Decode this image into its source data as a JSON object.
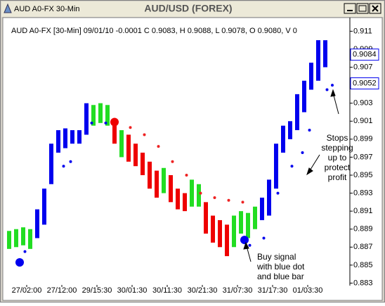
{
  "window": {
    "caption": "AUD A0-FX 30-Min",
    "title": "AUD/USD (FOREX)"
  },
  "chart_data": {
    "type": "ohlc",
    "header": "AUD A0-FX [30-Min] 09/01/10  -0.0001 C 0.9083, H 0.9088, L 0.9078, O 0.9080, V 0",
    "ylim": [
      0.8828,
      0.9115
    ],
    "yticks": [
      0.883,
      0.885,
      0.887,
      0.889,
      0.891,
      0.893,
      0.895,
      0.897,
      0.899,
      0.901,
      0.903,
      0.905,
      0.907,
      0.909,
      0.911
    ],
    "xlim": [
      -2,
      194
    ],
    "xticks": [
      {
        "value": 10,
        "label": "27/02:00"
      },
      {
        "value": 30,
        "label": "27/12:00"
      },
      {
        "value": 50,
        "label": "29/15:30"
      },
      {
        "value": 70,
        "label": "30/01:30"
      },
      {
        "value": 90,
        "label": "30/11:30"
      },
      {
        "value": 110,
        "label": "30/21:30"
      },
      {
        "value": 130,
        "label": "31/07:30"
      },
      {
        "value": 150,
        "label": "31/17:30"
      },
      {
        "value": 170,
        "label": "01/03:30"
      }
    ],
    "grid": false,
    "series": [
      {
        "color": "#0000ee",
        "x": [
          16,
          20,
          24,
          28,
          32,
          36,
          40,
          44,
          144,
          148,
          152,
          156,
          160,
          164,
          168,
          172,
          176,
          180
        ],
        "high": [
          0.8912,
          0.8935,
          0.8985,
          0.9,
          0.9002,
          0.9,
          0.9,
          0.903,
          0.8925,
          0.8945,
          0.8985,
          0.9005,
          0.901,
          0.904,
          0.9055,
          0.9075,
          0.91,
          0.91
        ],
        "low": [
          0.888,
          0.8895,
          0.894,
          0.8975,
          0.898,
          0.8985,
          0.8985,
          0.8995,
          0.89,
          0.8905,
          0.8935,
          0.8975,
          0.899,
          0.9,
          0.902,
          0.9045,
          0.9055,
          0.907
        ]
      },
      {
        "color": "#22dd22",
        "x": [
          0,
          4,
          8,
          12,
          48,
          52,
          56,
          64,
          88,
          104,
          108,
          128,
          132,
          136,
          140
        ],
        "high": [
          0.8888,
          0.889,
          0.8892,
          0.889,
          0.9028,
          0.903,
          0.9028,
          0.9,
          0.8958,
          0.8945,
          0.894,
          0.8905,
          0.891,
          0.8908,
          0.8915
        ],
        "low": [
          0.8868,
          0.887,
          0.8872,
          0.8868,
          0.9005,
          0.9008,
          0.9005,
          0.897,
          0.893,
          0.8915,
          0.8915,
          0.887,
          0.8885,
          0.888,
          0.889
        ]
      },
      {
        "color": "#ee0000",
        "x": [
          60,
          68,
          72,
          76,
          80,
          84,
          92,
          96,
          100,
          112,
          116,
          120,
          124
        ],
        "high": [
          0.901,
          0.8995,
          0.8985,
          0.8975,
          0.8965,
          0.8955,
          0.895,
          0.8935,
          0.893,
          0.892,
          0.8905,
          0.89,
          0.8895
        ],
        "low": [
          0.8985,
          0.8965,
          0.896,
          0.895,
          0.8935,
          0.8925,
          0.892,
          0.8912,
          0.891,
          0.8885,
          0.8875,
          0.887,
          0.886
        ]
      }
    ],
    "stops": [
      {
        "color": "#ee2222",
        "x": [
          61,
          69,
          77,
          85,
          93,
          101,
          109,
          117,
          125,
          133
        ],
        "values": [
          0.9008,
          0.9003,
          0.8995,
          0.8982,
          0.8965,
          0.895,
          0.893,
          0.8925,
          0.8922,
          0.892
        ]
      },
      {
        "color": "#0000ee",
        "x": [
          9,
          31,
          35,
          47,
          55,
          137,
          145,
          153,
          161,
          167,
          171,
          181,
          184
        ],
        "values": [
          0.8865,
          0.896,
          0.8965,
          0.9008,
          0.9008,
          0.8872,
          0.888,
          0.893,
          0.896,
          0.8975,
          0.9,
          0.9045,
          0.905
        ]
      }
    ],
    "signals": [
      {
        "color": "#0000ee",
        "x": [
          6,
          134
        ],
        "values": [
          0.8853,
          0.8878
        ]
      },
      {
        "color": "#ee0000",
        "x": [
          60
        ],
        "values": [
          0.9009
        ]
      }
    ],
    "price_labels": [
      {
        "value": 0.9084,
        "label": "0.9084"
      },
      {
        "value": 0.9052,
        "label": "0.9052"
      }
    ],
    "annotations": [
      {
        "lines": [
          "Stops",
          "stepping",
          "up to",
          "protect",
          "profit"
        ]
      },
      {
        "lines": [
          "Buy signal",
          "with blue dot",
          "and blue bar"
        ]
      }
    ]
  }
}
